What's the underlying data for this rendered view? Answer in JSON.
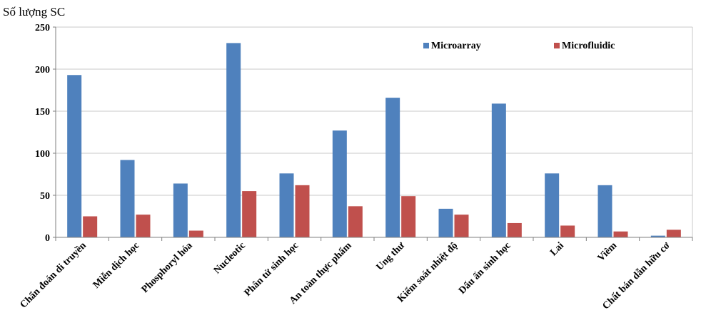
{
  "chart_data": {
    "type": "bar",
    "ylabel": "Số lượng SC",
    "xlabel": "",
    "title": "",
    "ylim": [
      0,
      250
    ],
    "yticks": [
      0,
      50,
      100,
      150,
      200,
      250
    ],
    "grid": true,
    "legend_position": "top-right",
    "categories": [
      "Chẩn đoán di truyền",
      "Miễn dịch học",
      "Phosphoryl hóa",
      "Nucleotic",
      "Phân tử sinh học",
      "An toàn thực phẩm",
      "Ung thư",
      "Kiểm soát nhiệt độ",
      "Dấu ấn sinh học",
      "Lai",
      "Viêm",
      "Chất bán dẫn hữu cơ"
    ],
    "series": [
      {
        "name": "Microarray",
        "color": "#4F81BD",
        "values": [
          193,
          92,
          64,
          231,
          76,
          127,
          166,
          34,
          159,
          76,
          62,
          2
        ]
      },
      {
        "name": "Microfluidic",
        "color": "#C0504D",
        "values": [
          25,
          27,
          8,
          55,
          62,
          37,
          49,
          27,
          17,
          14,
          7,
          9
        ]
      }
    ]
  }
}
